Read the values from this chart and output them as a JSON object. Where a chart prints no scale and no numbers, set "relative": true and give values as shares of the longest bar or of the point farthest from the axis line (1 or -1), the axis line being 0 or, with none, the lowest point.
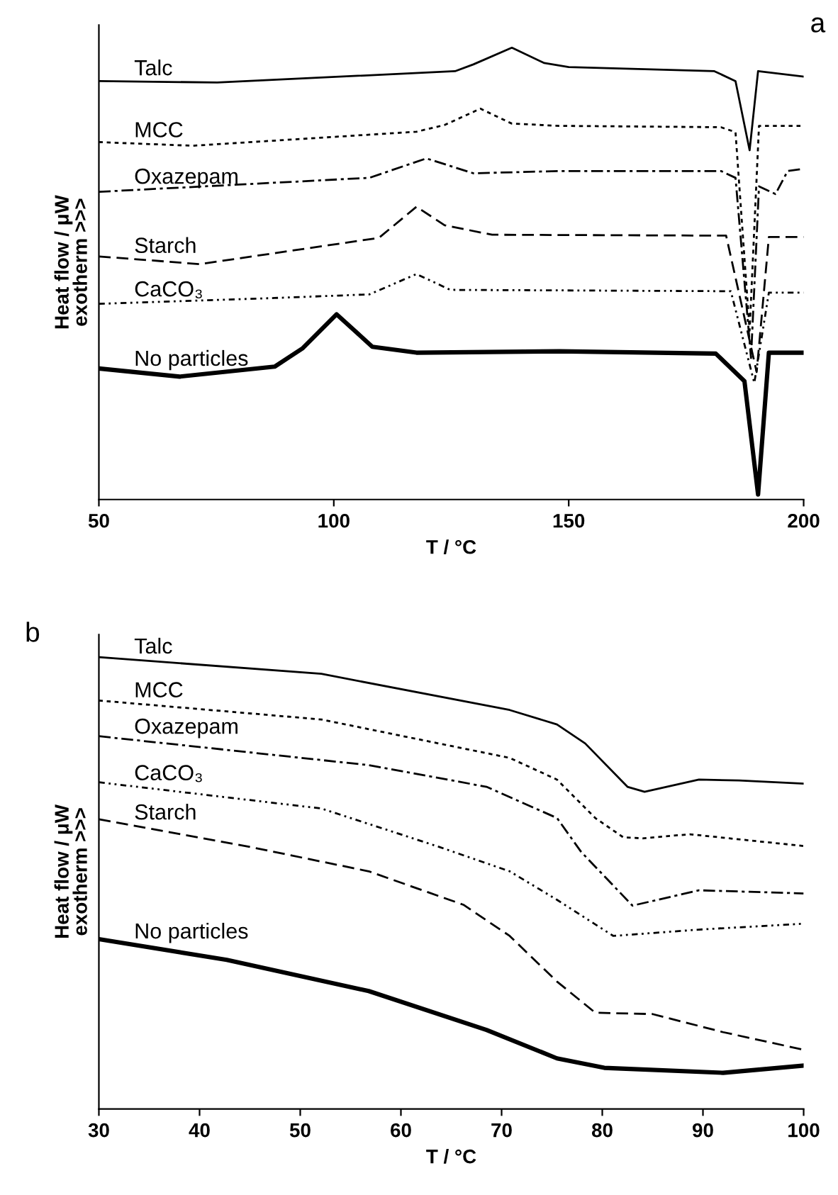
{
  "chart_data": [
    {
      "type": "line",
      "title": "a",
      "xlabel": "T / °C",
      "ylabel": "Heat flow / μW\nexotherm >>>",
      "relative": true,
      "xlim": [
        50,
        200
      ],
      "xticks": [
        50,
        100,
        150,
        200
      ],
      "tick_labels": "x",
      "grid": false,
      "legend": false,
      "marker": "none",
      "series": [
        {
          "name": "Talc",
          "color": "#000000",
          "line_style": "solid",
          "x": [
            50,
            75.2,
            125.8,
            129.7,
            137.9,
            144.8,
            150,
            181,
            185.5,
            188.5,
            190.3,
            200
          ],
          "values": [
            0.926,
            0.923,
            0.948,
            0.963,
            1.0,
            0.966,
            0.957,
            0.948,
            0.926,
            0.773,
            0.948,
            0.936
          ]
        },
        {
          "name": "MCC",
          "color": "#000000",
          "line_style": "dotted",
          "x": [
            50,
            70,
            117.6,
            123.6,
            131.2,
            137.9,
            148,
            182.4,
            185.5,
            188.5,
            190.5,
            200
          ],
          "values": [
            0.791,
            0.783,
            0.814,
            0.829,
            0.865,
            0.832,
            0.827,
            0.824,
            0.813,
            0.374,
            0.827,
            0.827
          ]
        },
        {
          "name": "Oxazepam",
          "color": "#000000",
          "line_style": "dashdot",
          "x": [
            50,
            107.6,
            119.7,
            129.7,
            148,
            182.4,
            185.5,
            188.8,
            190.5,
            194,
            196.6,
            200
          ],
          "values": [
            0.681,
            0.712,
            0.755,
            0.722,
            0.727,
            0.727,
            0.712,
            0.313,
            0.693,
            0.676,
            0.727,
            0.732
          ]
        },
        {
          "name": "Starch",
          "color": "#000000",
          "line_style": "dashed",
          "x": [
            50,
            71.5,
            109.6,
            117.6,
            123.6,
            133.7,
            183.5,
            190,
            192.6,
            200
          ],
          "values": [
            0.538,
            0.521,
            0.579,
            0.648,
            0.607,
            0.586,
            0.584,
            0.282,
            0.581,
            0.581
          ]
        },
        {
          "name": "CaCO₃",
          "color": "#000000",
          "line_style": "dashdotdot",
          "x": [
            50,
            87.4,
            107.6,
            117.6,
            124.8,
            184.5,
            189.5,
            192.6,
            200
          ],
          "values": [
            0.433,
            0.446,
            0.454,
            0.499,
            0.464,
            0.461,
            0.258,
            0.458,
            0.458
          ]
        },
        {
          "name": "No particles",
          "color": "#000000",
          "line_style": "solid",
          "x": [
            50,
            67.2,
            87.4,
            93.4,
            100.6,
            108.2,
            117.6,
            148,
            181.3,
            187.4,
            190.3,
            192.6,
            200
          ],
          "values": [
            0.29,
            0.272,
            0.294,
            0.335,
            0.41,
            0.338,
            0.325,
            0.328,
            0.323,
            0.262,
            0.011,
            0.325,
            0.325
          ]
        }
      ]
    },
    {
      "type": "line",
      "title": "b",
      "xlabel": "T / °C",
      "ylabel": "Heat flow / μW\nexotherm >>>",
      "relative": true,
      "xlim": [
        30,
        100
      ],
      "xticks": [
        30,
        40,
        50,
        60,
        70,
        80,
        90,
        100
      ],
      "tick_labels": "x",
      "grid": false,
      "legend": false,
      "marker": "none",
      "series": [
        {
          "name": "Talc",
          "color": "#000000",
          "line_style": "solid",
          "x": [
            30,
            52.1,
            70.8,
            75.5,
            78.3,
            82.5,
            84.2,
            89.6,
            93.6,
            100
          ],
          "values": [
            1.0,
            0.963,
            0.883,
            0.851,
            0.809,
            0.713,
            0.702,
            0.729,
            0.727,
            0.72
          ]
        },
        {
          "name": "MCC",
          "color": "#000000",
          "line_style": "dotted",
          "x": [
            30,
            52.1,
            70.8,
            75.5,
            79.3,
            82.1,
            84,
            88.7,
            100
          ],
          "values": [
            0.904,
            0.862,
            0.777,
            0.729,
            0.644,
            0.601,
            0.599,
            0.608,
            0.582
          ]
        },
        {
          "name": "Oxazepam",
          "color": "#000000",
          "line_style": "dashdot",
          "x": [
            30,
            56.8,
            68.5,
            75.5,
            77.9,
            83,
            89.6,
            100
          ],
          "values": [
            0.825,
            0.761,
            0.713,
            0.644,
            0.569,
            0.45,
            0.484,
            0.477
          ]
        },
        {
          "name": "CaCO₃",
          "color": "#000000",
          "line_style": "dashdotdot",
          "x": [
            30,
            52.1,
            63.8,
            70.8,
            75.5,
            81.1,
            89.6,
            100
          ],
          "values": [
            0.723,
            0.665,
            0.58,
            0.526,
            0.463,
            0.383,
            0.397,
            0.41
          ]
        },
        {
          "name": "Starch",
          "color": "#000000",
          "line_style": "dashed",
          "x": [
            30,
            45,
            56.8,
            66.2,
            70.8,
            75.5,
            79.3,
            85,
            92,
            100
          ],
          "values": [
            0.641,
            0.58,
            0.526,
            0.452,
            0.383,
            0.282,
            0.213,
            0.21,
            0.17,
            0.131
          ]
        },
        {
          "name": "No particles",
          "color": "#000000",
          "line_style": "solid",
          "x": [
            30,
            42.7,
            56.8,
            68.5,
            75.5,
            80.2,
            92,
            100
          ],
          "values": [
            0.376,
            0.33,
            0.261,
            0.175,
            0.112,
            0.091,
            0.08,
            0.096
          ]
        }
      ]
    }
  ]
}
